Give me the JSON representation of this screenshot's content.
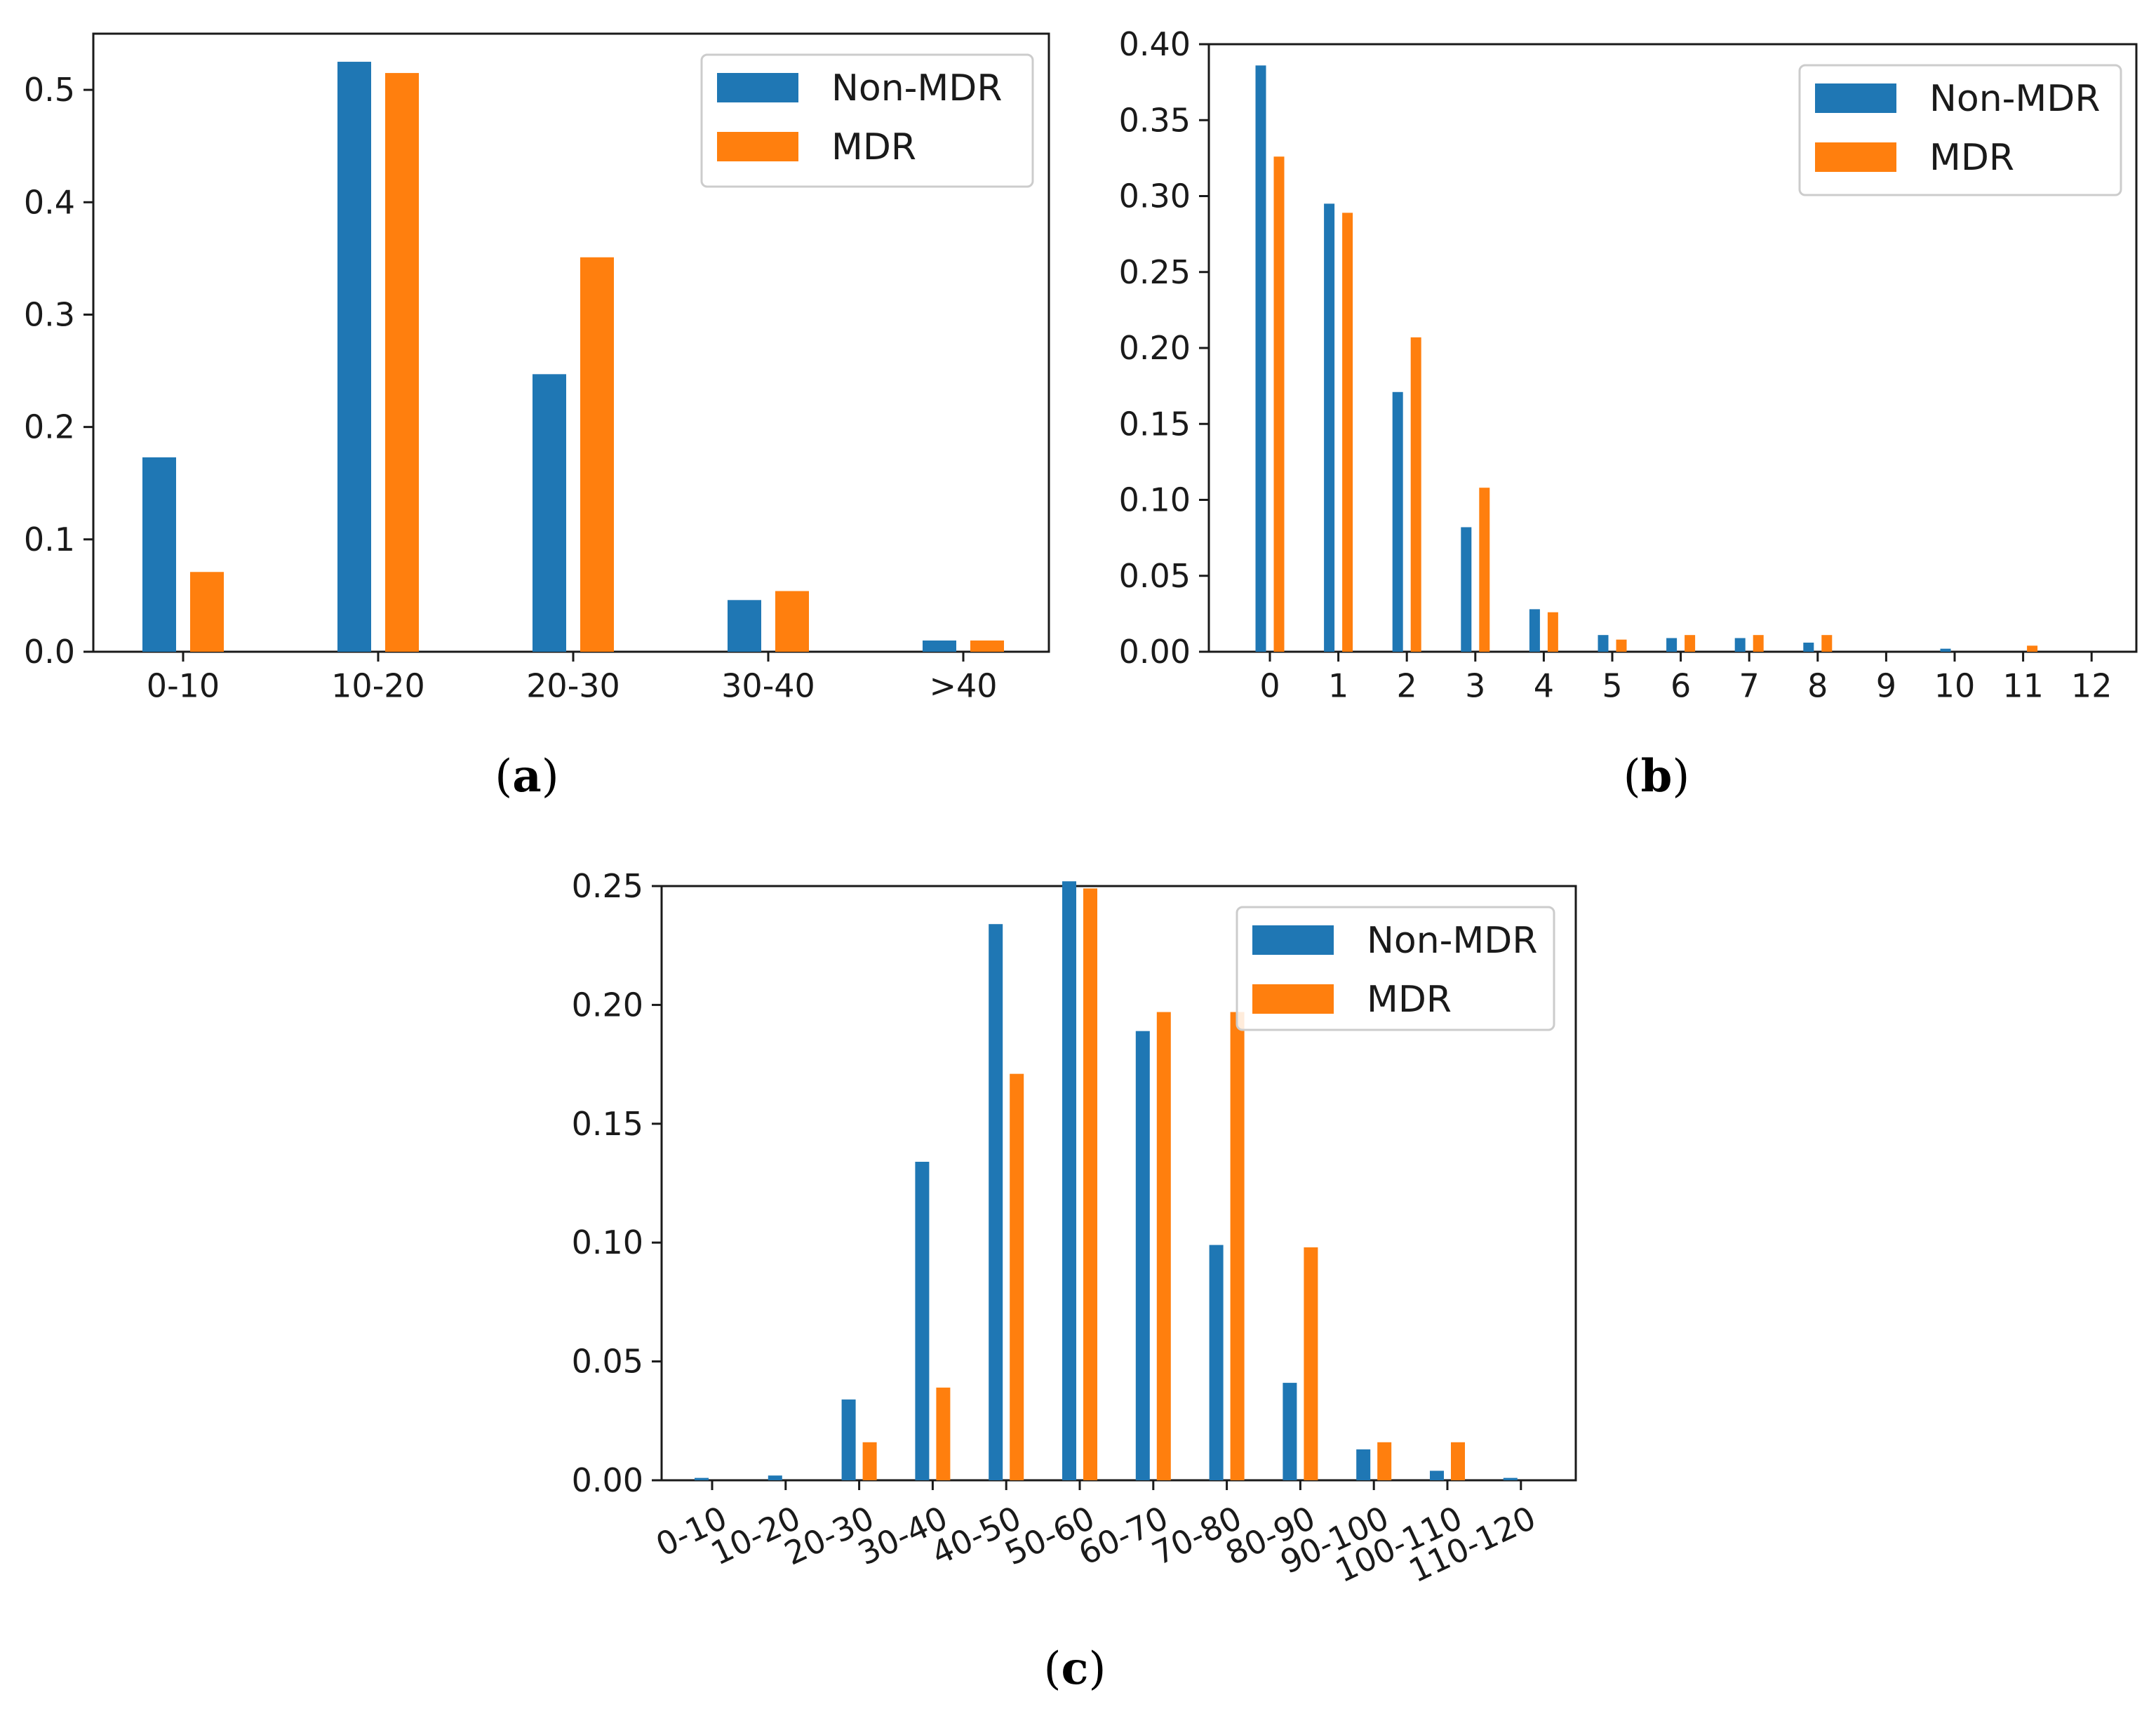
{
  "colors": {
    "non_mdr": "#1f77b4",
    "mdr": "#ff7f0e",
    "axis": "#1a1a1a"
  },
  "chart_data": [
    {
      "id": "a",
      "type": "bar",
      "caption": {
        "open": "(",
        "letter": "a",
        "close": ")"
      },
      "categories": [
        "0-10",
        "10-20",
        "20-30",
        "30-40",
        ">40"
      ],
      "series": [
        {
          "name": "Non-MDR",
          "values": [
            0.173,
            0.525,
            0.247,
            0.046,
            0.01
          ]
        },
        {
          "name": "MDR",
          "values": [
            0.071,
            0.515,
            0.351,
            0.054,
            0.01
          ]
        }
      ],
      "ylim": [
        0,
        0.55
      ],
      "yticks": [
        0.0,
        0.1,
        0.2,
        0.3,
        0.4,
        0.5
      ],
      "ytick_labels": [
        "0.0",
        "0.1",
        "0.2",
        "0.3",
        "0.4",
        "0.5"
      ],
      "legend": {
        "loc": "top-right",
        "labels": [
          "Non-MDR",
          "MDR"
        ]
      },
      "title": "",
      "xlabel": "",
      "ylabel": ""
    },
    {
      "id": "b",
      "type": "bar",
      "caption": {
        "open": "(",
        "letter": "b",
        "close": ")"
      },
      "categories": [
        "0",
        "1",
        "2",
        "3",
        "4",
        "5",
        "6",
        "7",
        "8",
        "9",
        "10",
        "11",
        "12"
      ],
      "series": [
        {
          "name": "Non-MDR",
          "values": [
            0.386,
            0.295,
            0.171,
            0.082,
            0.028,
            0.011,
            0.009,
            0.009,
            0.006,
            0.0,
            0.002,
            0.0,
            0.0
          ]
        },
        {
          "name": "MDR",
          "values": [
            0.326,
            0.289,
            0.207,
            0.108,
            0.026,
            0.008,
            0.011,
            0.011,
            0.011,
            0.0,
            0.0,
            0.004,
            0.0
          ]
        }
      ],
      "ylim": [
        0,
        0.4
      ],
      "yticks": [
        0.0,
        0.05,
        0.1,
        0.15,
        0.2,
        0.25,
        0.3,
        0.35,
        0.4
      ],
      "ytick_labels": [
        "0.00",
        "0.05",
        "0.10",
        "0.15",
        "0.20",
        "0.25",
        "0.30",
        "0.35",
        "0.40"
      ],
      "legend": {
        "loc": "top-right",
        "labels": [
          "Non-MDR",
          "MDR"
        ]
      },
      "title": "",
      "xlabel": "",
      "ylabel": ""
    },
    {
      "id": "c",
      "type": "bar",
      "caption": {
        "open": "(",
        "letter": "c",
        "close": ")"
      },
      "categories": [
        "0-10",
        "10-20",
        "20-30",
        "30-40",
        "40-50",
        "50-60",
        "60-70",
        "70-80",
        "80-90",
        "90-100",
        "100-110",
        "110-120"
      ],
      "series": [
        {
          "name": "Non-MDR",
          "values": [
            0.001,
            0.002,
            0.034,
            0.134,
            0.234,
            0.252,
            0.189,
            0.099,
            0.041,
            0.013,
            0.004,
            0.001
          ]
        },
        {
          "name": "MDR",
          "values": [
            0.0,
            0.0,
            0.016,
            0.039,
            0.171,
            0.249,
            0.197,
            0.197,
            0.098,
            0.016,
            0.016,
            0.0
          ]
        }
      ],
      "ylim": [
        0,
        0.25
      ],
      "yticks": [
        0.0,
        0.05,
        0.1,
        0.15,
        0.2,
        0.25
      ],
      "ytick_labels": [
        "0.00",
        "0.05",
        "0.10",
        "0.15",
        "0.20",
        "0.25"
      ],
      "legend": {
        "loc": "top-right",
        "labels": [
          "Non-MDR",
          "MDR"
        ]
      },
      "title": "",
      "xlabel": "",
      "ylabel": ""
    }
  ]
}
